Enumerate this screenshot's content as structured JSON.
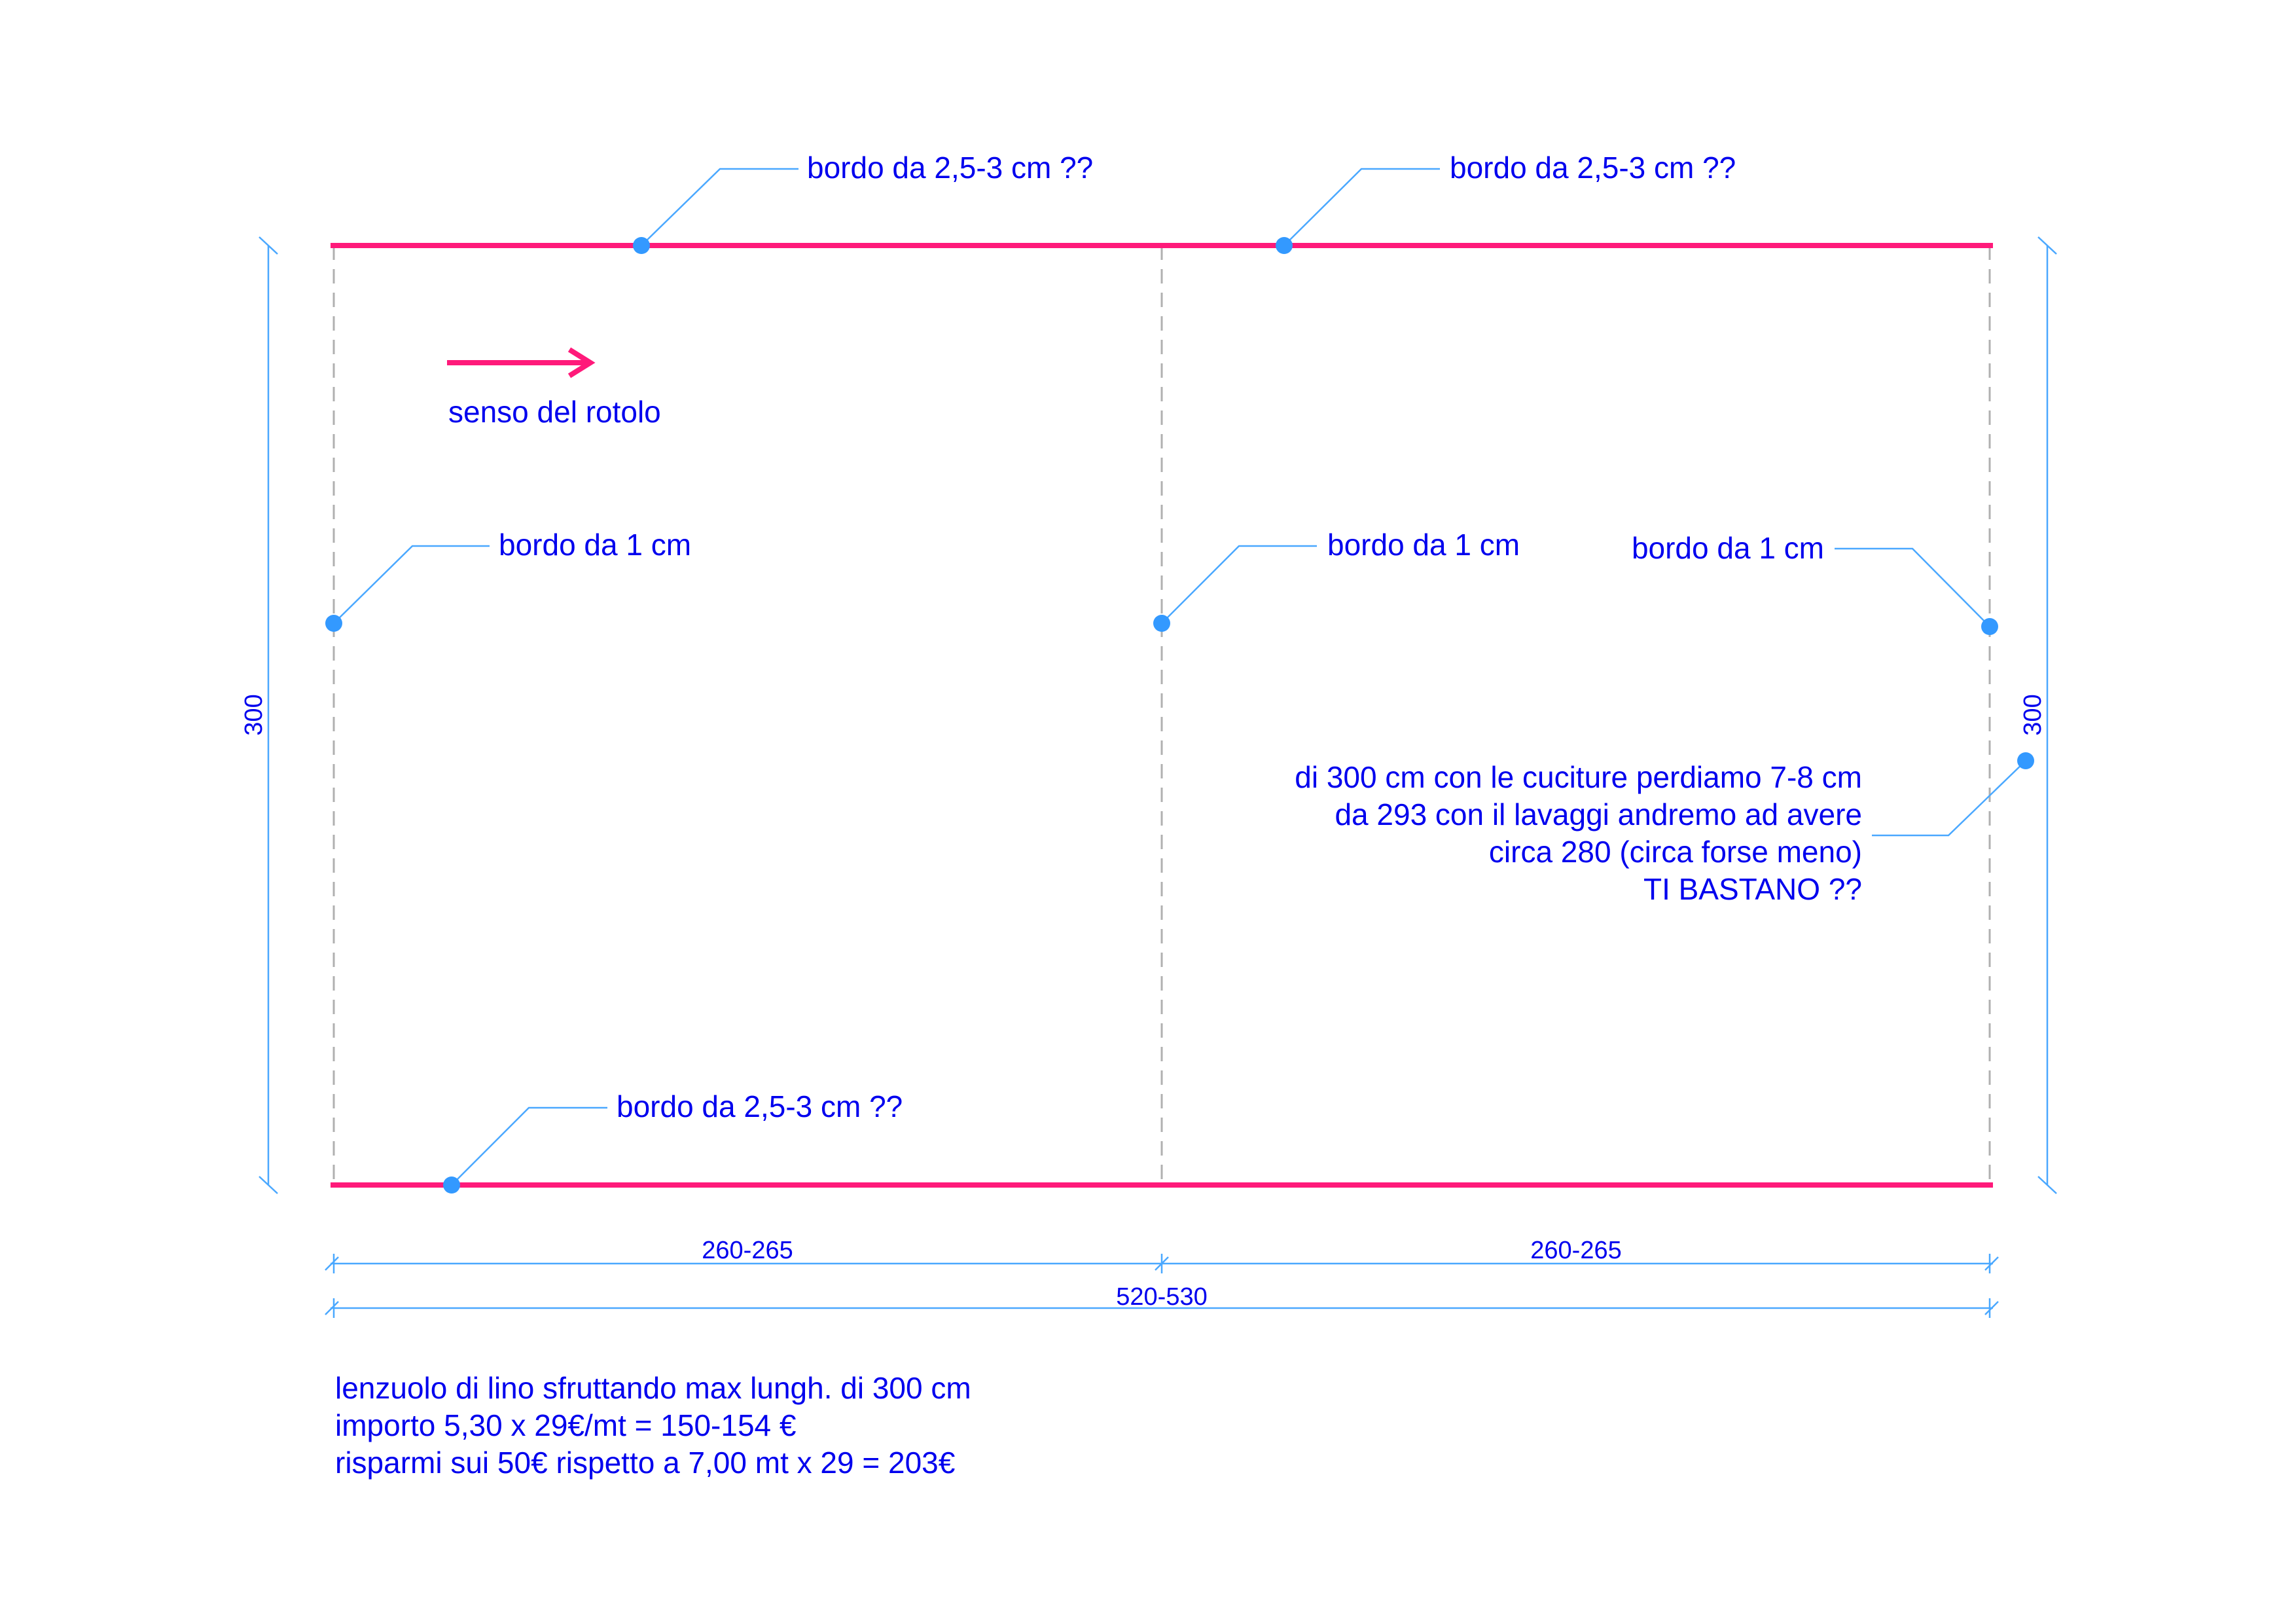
{
  "callouts": {
    "top_left": "bordo da 2,5-3 cm ??",
    "top_right": "bordo da 2,5-3 cm ??",
    "bottom_left": "bordo da 2,5-3 cm ??",
    "left_edge": "bordo da 1 cm",
    "middle_seam": "bordo da 1 cm",
    "right_edge": "bordo da 1 cm"
  },
  "roll_direction": {
    "label": "senso del rotolo",
    "color": "#ff1a7a"
  },
  "note": {
    "lines": [
      "di 300 cm con le cuciture perdiamo 7-8 cm",
      "da 293 con il lavaggi andremo ad avere",
      "circa 280 (circa forse meno)",
      "TI  BASTANO ??"
    ]
  },
  "dimensions": {
    "height_left": "300",
    "height_right": "300",
    "width_panel_left": "260-265",
    "width_panel_right": "260-265",
    "width_total": "520-530"
  },
  "summary": {
    "lines": [
      "lenzuolo di lino sfruttando max lungh. di 300 cm",
      "importo 5,30 x 29€/mt = 150-154 €",
      "risparmi sui 50€ rispetto a 7,00 mt x 29 = 203€"
    ]
  },
  "colors": {
    "text": "#0000ee",
    "leader": "#4aa8ff",
    "edge": "#ff1a7a",
    "seam": "#b0b0b0"
  }
}
